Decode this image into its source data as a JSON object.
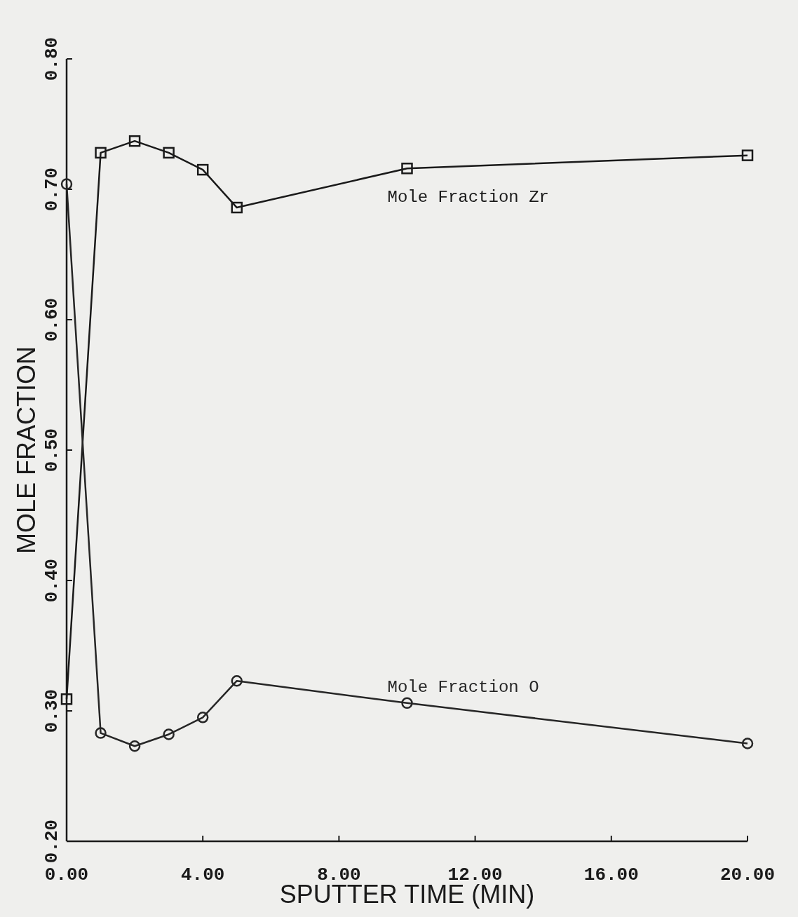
{
  "chart_data": {
    "type": "line",
    "xlabel": "SPUTTER TIME (MIN)",
    "ylabel": "MOLE FRACTION",
    "x": [
      0,
      1,
      2,
      3,
      4,
      5,
      10,
      20
    ],
    "series": [
      {
        "name": "Mole Fraction Zr",
        "color": "#1a1a1a",
        "marker": "square",
        "values": [
          0.309,
          0.728,
          0.737,
          0.728,
          0.715,
          0.686,
          0.716,
          0.726
        ]
      },
      {
        "name": "Mole Fraction O",
        "color": "#262626",
        "marker": "circle",
        "values": [
          0.704,
          0.283,
          0.273,
          0.282,
          0.295,
          0.323,
          0.306,
          0.275
        ]
      }
    ],
    "xlim": [
      0,
      20
    ],
    "xticks": [
      {
        "value": 0,
        "label": "0.00"
      },
      {
        "value": 4,
        "label": "4.00"
      },
      {
        "value": 8,
        "label": "8.00"
      },
      {
        "value": 12,
        "label": "12.00"
      },
      {
        "value": 16,
        "label": "16.00"
      },
      {
        "value": 20,
        "label": "20.00"
      }
    ],
    "ylim": [
      0.2,
      0.8
    ],
    "yticks": [
      {
        "value": 0.2,
        "label": "0.20"
      },
      {
        "value": 0.3,
        "label": "0.30"
      },
      {
        "value": 0.4,
        "label": "0.40"
      },
      {
        "value": 0.5,
        "label": "0.50"
      },
      {
        "value": 0.6,
        "label": "0.60"
      },
      {
        "value": 0.7,
        "label": "0.70"
      },
      {
        "value": 0.8,
        "label": "0.80"
      }
    ],
    "grid": false,
    "legend": false,
    "line_style": "solid"
  }
}
